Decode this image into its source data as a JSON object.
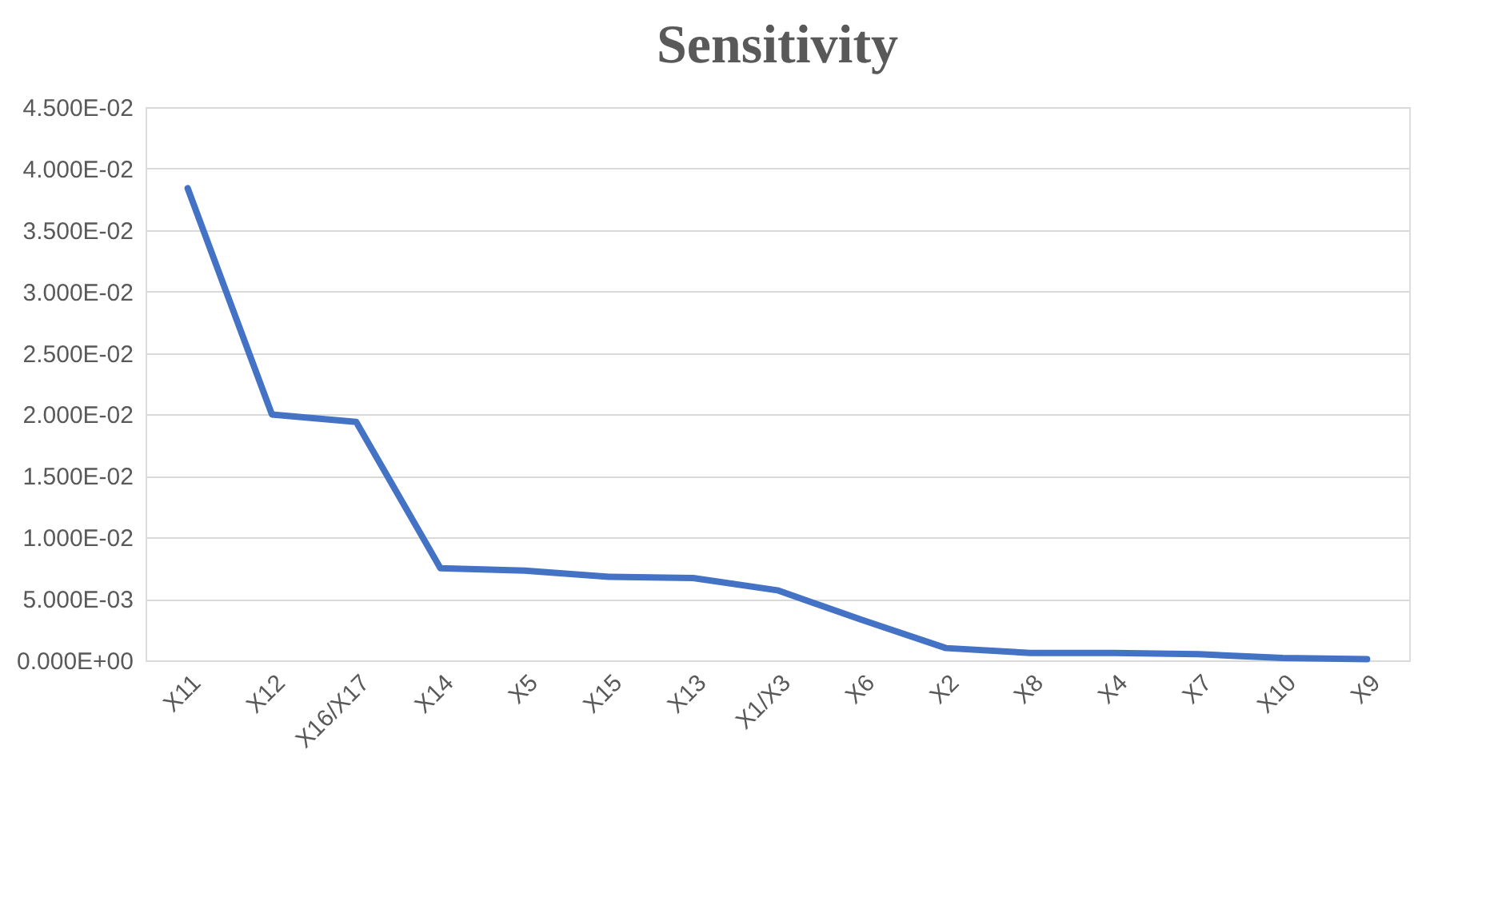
{
  "chart_data": {
    "type": "line",
    "title": "Sensitivity",
    "categories": [
      "X11",
      "X12",
      "X16/X17",
      "X14",
      "X5",
      "X15",
      "X13",
      "X1/X3",
      "X6",
      "X2",
      "X8",
      "X4",
      "X7",
      "X10",
      "X9"
    ],
    "series": [
      {
        "color": "#4472c4",
        "values": [
          0.0384,
          0.02,
          0.0194,
          0.0075,
          0.0073,
          0.0068,
          0.0067,
          0.0057,
          0.0033,
          0.001,
          0.0006,
          0.0006,
          0.0005,
          0.0002,
          0.0001
        ]
      }
    ],
    "ylim": [
      0,
      0.045
    ],
    "yticks": [
      {
        "value": 0,
        "label": "0.000E+00"
      },
      {
        "value": 0.005,
        "label": "5.000E-03"
      },
      {
        "value": 0.01,
        "label": "1.000E-02"
      },
      {
        "value": 0.015,
        "label": "1.500E-02"
      },
      {
        "value": 0.02,
        "label": "2.000E-02"
      },
      {
        "value": 0.025,
        "label": "2.500E-02"
      },
      {
        "value": 0.03,
        "label": "3.000E-02"
      },
      {
        "value": 0.035,
        "label": "3.500E-02"
      },
      {
        "value": 0.04,
        "label": "4.000E-02"
      },
      {
        "value": 0.045,
        "label": "4.500E-02"
      }
    ],
    "grid": "y",
    "marker": "none",
    "line_style": "solid"
  }
}
